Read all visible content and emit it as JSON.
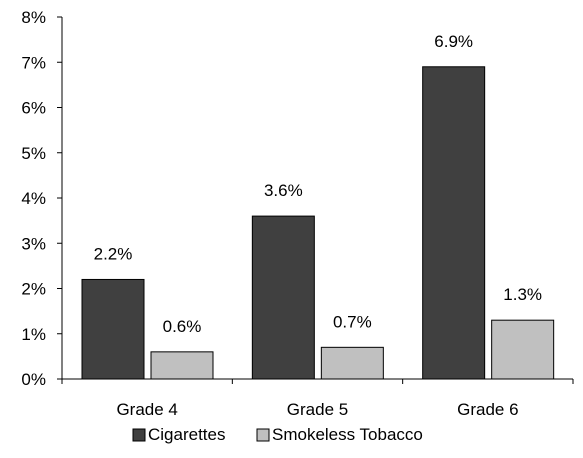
{
  "chart_data": {
    "type": "bar",
    "categories": [
      "Grade 4",
      "Grade 5",
      "Grade 6"
    ],
    "series": [
      {
        "name": "Cigarettes",
        "values": [
          2.2,
          3.6,
          6.9
        ],
        "labels": [
          "2.2%",
          "3.6%",
          "6.9%"
        ],
        "color": "#404040"
      },
      {
        "name": "Smokeless Tobacco",
        "values": [
          0.6,
          0.7,
          1.3
        ],
        "labels": [
          "0.6%",
          "0.7%",
          "1.3%"
        ],
        "color": "#c0c0c0"
      }
    ],
    "ylim": [
      0,
      8
    ],
    "yticks": [
      0,
      1,
      2,
      3,
      4,
      5,
      6,
      7,
      8
    ],
    "ytick_labels": [
      "0%",
      "1%",
      "2%",
      "3%",
      "4%",
      "5%",
      "6%",
      "7%",
      "8%"
    ],
    "grid": false,
    "legend_position": "bottom"
  }
}
